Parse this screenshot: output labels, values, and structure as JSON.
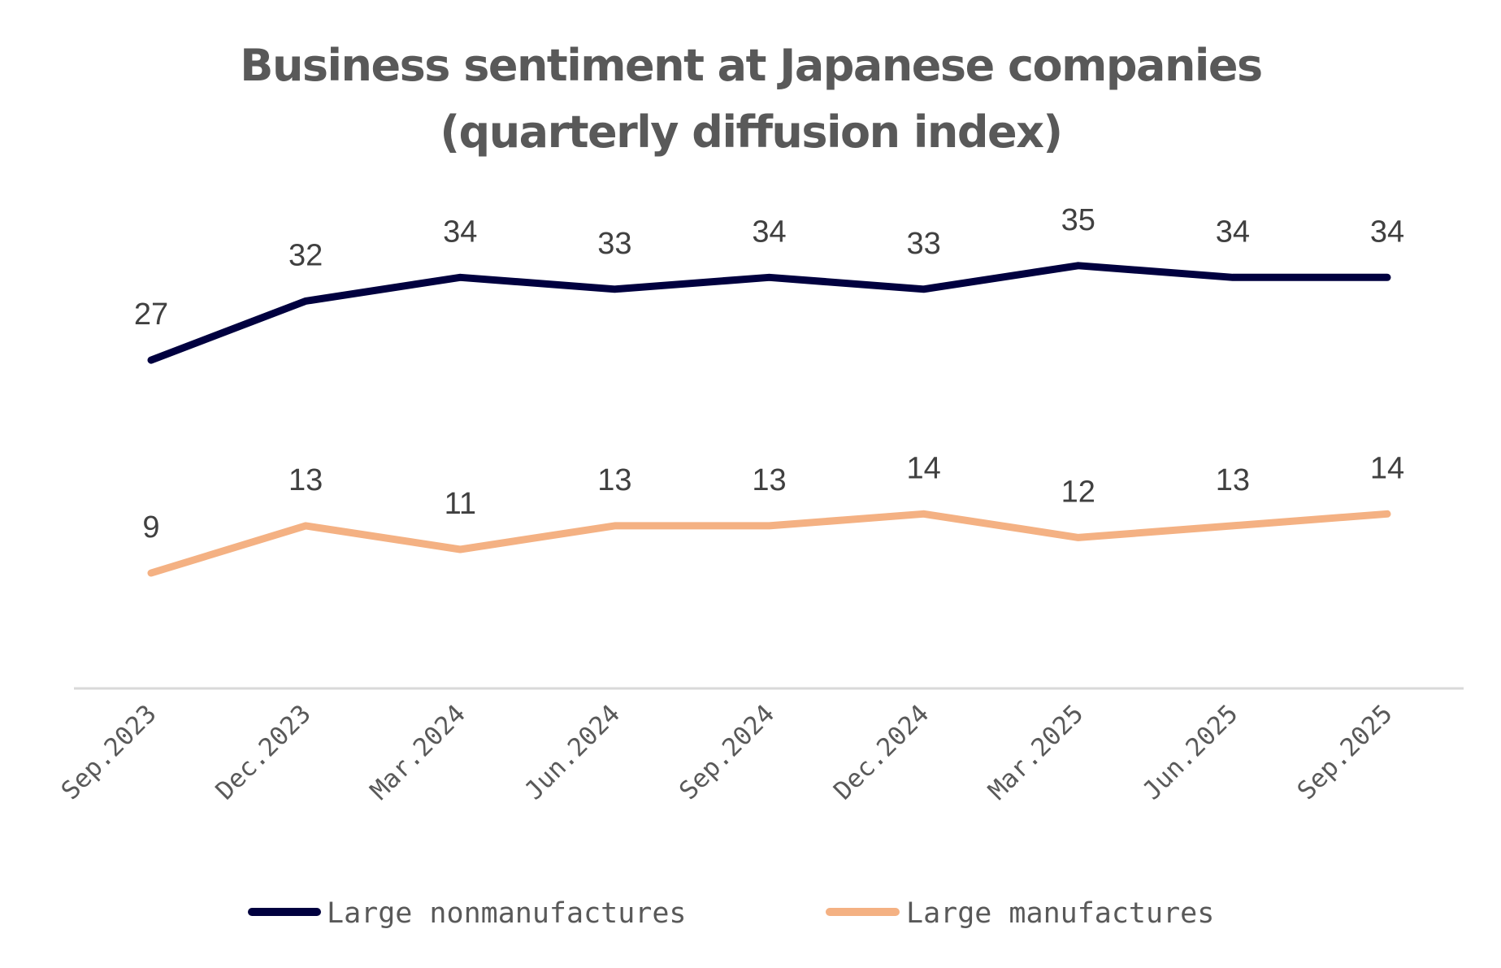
{
  "chart_data": {
    "type": "line",
    "title": [
      "Business sentiment at Japanese companies",
      "(quarterly diffusion index)"
    ],
    "xlabel": "",
    "ylabel": "",
    "categories": [
      "Sep.2023",
      "Dec.2023",
      "Mar.2024",
      "Jun.2024",
      "Sep.2024",
      "Dec.2024",
      "Mar.2025",
      "Jun.2025",
      "Sep.2025"
    ],
    "ylim": [
      0,
      40
    ],
    "grid": false,
    "legend_position": "bottom",
    "data_labels": true,
    "series": [
      {
        "name": "Large nonmanufactures",
        "color": "#00003f",
        "values": [
          27,
          32,
          34,
          33,
          34,
          33,
          35,
          34,
          34
        ]
      },
      {
        "name": "Large manufactures",
        "color": "#f4b183",
        "values": [
          9,
          13,
          11,
          13,
          13,
          14,
          12,
          13,
          14
        ]
      }
    ],
    "axis_color": "#d9d9d9",
    "text_color": "#595959"
  }
}
